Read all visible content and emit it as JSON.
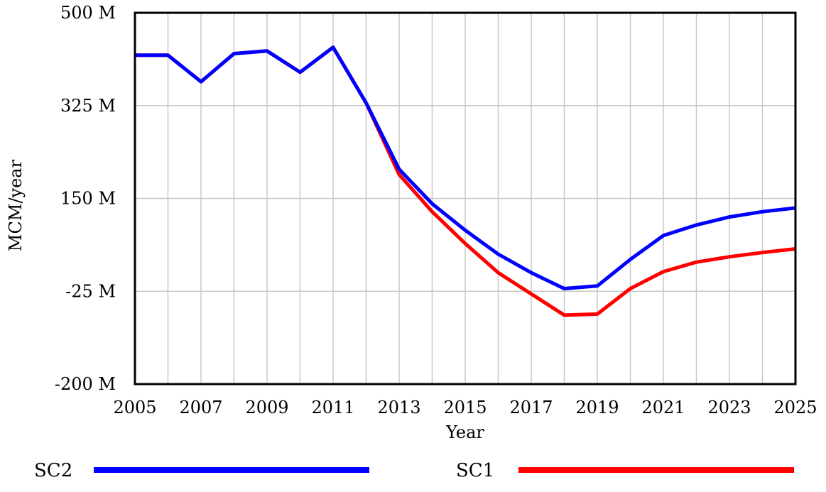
{
  "chart_data": {
    "type": "line",
    "title": "",
    "xlabel": "Year",
    "ylabel": "MCM/year",
    "xlim": [
      2005,
      2025
    ],
    "ylim": [
      -200,
      500
    ],
    "x_ticks": [
      2005,
      2007,
      2009,
      2011,
      2013,
      2015,
      2017,
      2019,
      2021,
      2023,
      2025
    ],
    "x_tick_labels": [
      "2005",
      "2007",
      "2009",
      "2011",
      "2013",
      "2015",
      "2017",
      "2019",
      "2021",
      "2023",
      "2025"
    ],
    "y_ticks": [
      500,
      325,
      150,
      -25,
      -200
    ],
    "y_tick_labels": [
      "500 M",
      "325 M",
      "150 M",
      "-25 M",
      "-200 M"
    ],
    "grid": true,
    "legend_position": "bottom",
    "x": [
      2005,
      2006,
      2007,
      2008,
      2009,
      2010,
      2011,
      2012,
      2013,
      2014,
      2015,
      2016,
      2017,
      2018,
      2019,
      2020,
      2021,
      2022,
      2023,
      2024,
      2025
    ],
    "series": [
      {
        "name": "SC2",
        "color": "#0000ff",
        "values": [
          420,
          420,
          370,
          423,
          428,
          388,
          435,
          330,
          205,
          140,
          90,
          45,
          10,
          -20,
          -15,
          35,
          80,
          100,
          115,
          125,
          132
        ]
      },
      {
        "name": "SC1",
        "color": "#ff0000",
        "values": [
          420,
          420,
          370,
          423,
          428,
          388,
          435,
          330,
          195,
          125,
          65,
          10,
          -30,
          -70,
          -68,
          -20,
          12,
          30,
          40,
          48,
          55
        ]
      }
    ]
  }
}
